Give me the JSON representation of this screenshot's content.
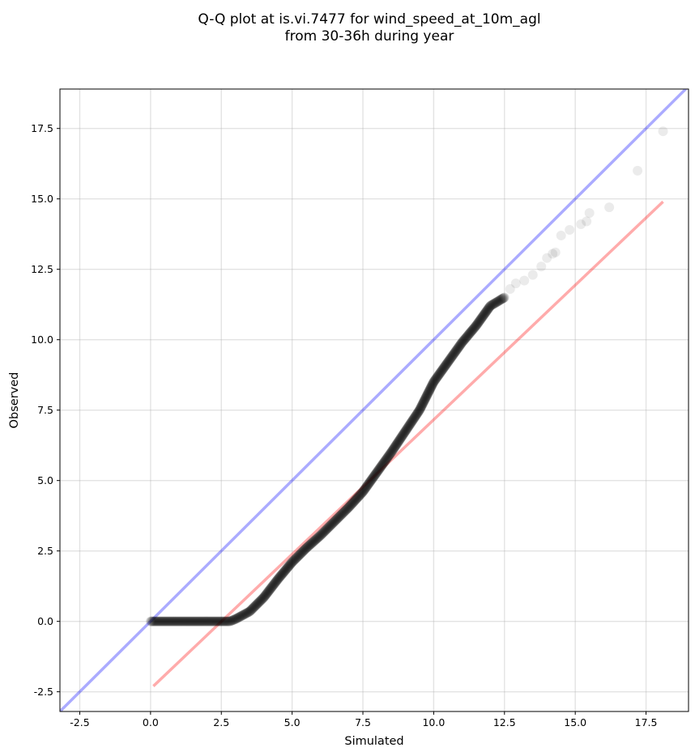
{
  "chart_data": {
    "type": "scatter",
    "title_line1": "Q-Q plot at is.vi.7477 for wind_speed_at_10m_agl",
    "title_line2": "from 30-36h during year",
    "xlabel": "Simulated",
    "ylabel": "Observed",
    "xlim": [
      -3.2,
      19.0
    ],
    "ylim": [
      -3.2,
      18.9
    ],
    "xticks": [
      -2.5,
      0.0,
      2.5,
      5.0,
      7.5,
      10.0,
      12.5,
      15.0,
      17.5
    ],
    "yticks": [
      -2.5,
      0.0,
      2.5,
      5.0,
      7.5,
      10.0,
      12.5,
      15.0,
      17.5
    ],
    "grid": true,
    "identity_line": {
      "color": "#0000ff",
      "opacity": 0.33
    },
    "fit_line": {
      "color": "#ff0000",
      "opacity": 0.33,
      "x": [
        0.1,
        18.1
      ],
      "y": [
        -2.3,
        14.9
      ]
    },
    "marker_color": "#000000",
    "quantile_curve": [
      [
        0.0,
        0.0
      ],
      [
        0.1,
        0.0
      ],
      [
        2.8,
        0.0
      ],
      [
        3.0,
        0.08
      ],
      [
        3.5,
        0.35
      ],
      [
        4.0,
        0.85
      ],
      [
        4.5,
        1.5
      ],
      [
        5.0,
        2.1
      ],
      [
        5.5,
        2.6
      ],
      [
        6.0,
        3.05
      ],
      [
        6.5,
        3.55
      ],
      [
        7.0,
        4.05
      ],
      [
        7.5,
        4.6
      ],
      [
        8.0,
        5.3
      ],
      [
        8.5,
        6.0
      ],
      [
        9.0,
        6.75
      ],
      [
        9.5,
        7.5
      ],
      [
        10.0,
        8.5
      ],
      [
        10.5,
        9.2
      ],
      [
        11.0,
        9.9
      ],
      [
        11.5,
        10.5
      ],
      [
        12.0,
        11.2
      ],
      [
        12.5,
        11.5
      ]
    ],
    "tail_points": [
      [
        12.7,
        11.8
      ],
      [
        12.9,
        12.0
      ],
      [
        13.2,
        12.1
      ],
      [
        13.5,
        12.3
      ],
      [
        13.8,
        12.6
      ],
      [
        14.0,
        12.9
      ],
      [
        14.2,
        13.05
      ],
      [
        14.3,
        13.1
      ],
      [
        14.5,
        13.7
      ],
      [
        14.8,
        13.9
      ],
      [
        15.2,
        14.1
      ],
      [
        15.4,
        14.2
      ],
      [
        15.5,
        14.5
      ],
      [
        16.2,
        14.7
      ],
      [
        17.2,
        16.0
      ],
      [
        18.1,
        17.4
      ]
    ]
  }
}
